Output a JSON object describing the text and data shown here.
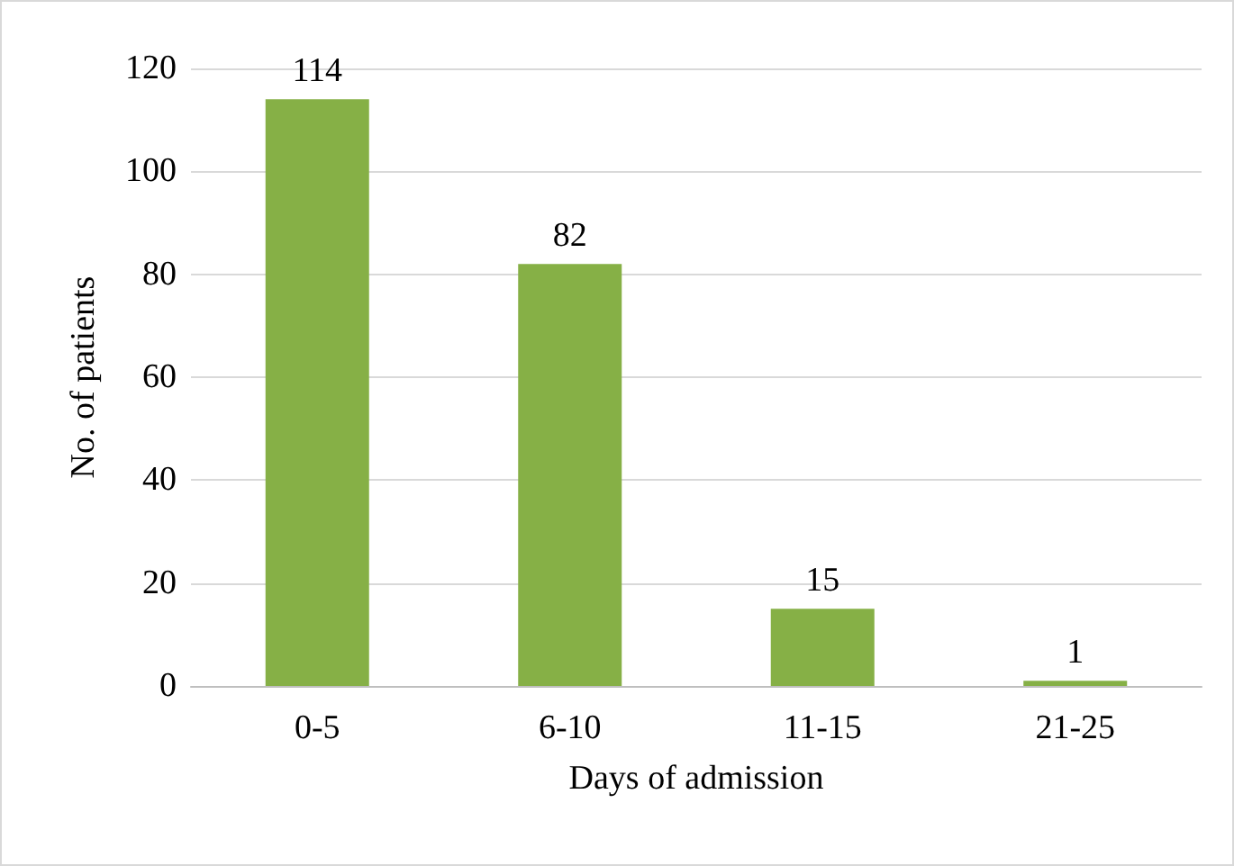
{
  "chart_data": {
    "type": "bar",
    "xlabel": "Days of admission",
    "ylabel": "No. of patients",
    "categories": [
      "0-5",
      "6-10",
      "11-15",
      "21-25"
    ],
    "values": [
      114,
      82,
      15,
      1
    ],
    "color": "#86b046",
    "ylim": [
      0,
      120
    ],
    "yticks": [
      0,
      20,
      40,
      60,
      80,
      100,
      120
    ],
    "grid": "y",
    "data_labels": true
  }
}
